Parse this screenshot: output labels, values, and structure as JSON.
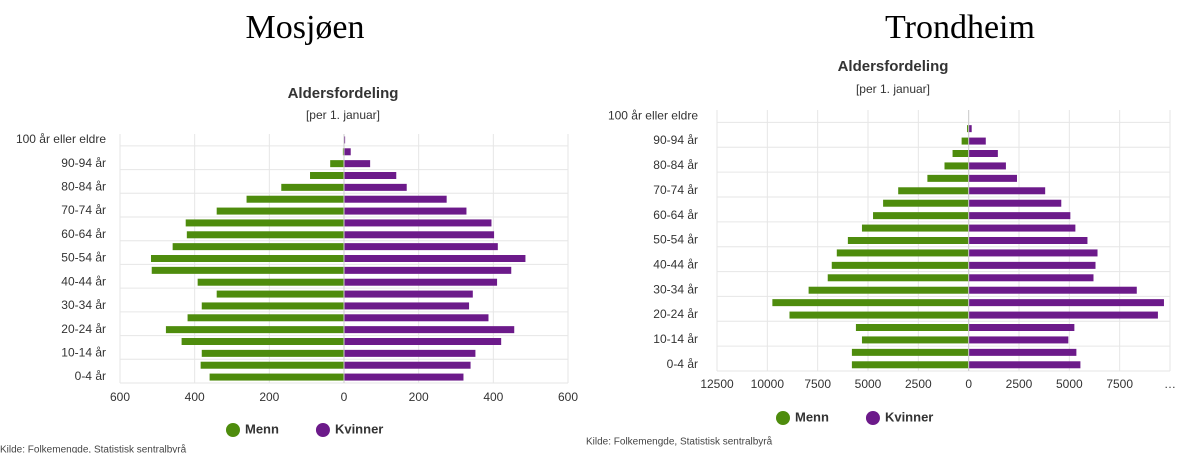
{
  "chart_data": [
    {
      "type": "pyramid",
      "header": "Mosjøen",
      "title": "Aldersfordeling",
      "subtitle": "[per 1. januar]",
      "categories": [
        "0-4 år",
        null,
        "10-14 år",
        null,
        "20-24 år",
        null,
        "30-34 år",
        null,
        "40-44 år",
        null,
        "50-54 år",
        null,
        "60-64 år",
        null,
        "70-74 år",
        null,
        "80-84 år",
        null,
        "90-94 år",
        null,
        "100 år eller eldre"
      ],
      "series": [
        {
          "name": "Menn",
          "color": "#4e8c0d",
          "values": [
            -360,
            -384,
            -381,
            -435,
            -477,
            -419,
            -381,
            -341,
            -392,
            -515,
            -517,
            -459,
            -421,
            -424,
            -341,
            -261,
            -168,
            -91,
            -37,
            -3,
            0
          ]
        },
        {
          "name": "Kvinner",
          "color": "#6c1a8a",
          "values": [
            320,
            339,
            352,
            421,
            456,
            387,
            335,
            345,
            410,
            448,
            486,
            412,
            402,
            395,
            328,
            275,
            168,
            140,
            70,
            18,
            3
          ]
        }
      ],
      "xlim": [
        -600,
        600
      ],
      "xticks": [
        {
          "value": -600,
          "label": "600"
        },
        {
          "value": -400,
          "label": "400"
        },
        {
          "value": -200,
          "label": "200"
        },
        0,
        200,
        400,
        600
      ],
      "grid": true,
      "source": "Kilde: Folkemengde, Statistisk sentralbyrå"
    },
    {
      "type": "pyramid",
      "header": "Trondheim",
      "title": "Aldersfordeling",
      "subtitle": "[per 1. januar]",
      "categories": [
        "0-4 år",
        null,
        "10-14 år",
        null,
        "20-24 år",
        null,
        "30-34 år",
        null,
        "40-44 år",
        null,
        "50-54 år",
        null,
        "60-64 år",
        null,
        "70-74 år",
        null,
        "80-84 år",
        null,
        "90-94 år",
        null,
        "100 år eller eldre"
      ],
      "series": [
        {
          "name": "Menn",
          "color": "#4e8c0d",
          "values": [
            -5800,
            -5800,
            -5300,
            -5600,
            -8900,
            -9750,
            -7950,
            -7000,
            -6800,
            -6550,
            -6000,
            -5300,
            -4750,
            -4250,
            -3500,
            -2050,
            -1200,
            -800,
            -350,
            -80,
            0
          ]
        },
        {
          "name": "Kvinner",
          "color": "#6c1a8a",
          "values": [
            5550,
            5350,
            4950,
            5250,
            9400,
            9700,
            8350,
            6200,
            6300,
            6400,
            5900,
            5300,
            5050,
            4600,
            3800,
            2400,
            1850,
            1450,
            850,
            150,
            0
          ]
        }
      ],
      "xlim": [
        -12500,
        10000
      ],
      "xticks": [
        {
          "value": -12500,
          "label": "12500"
        },
        {
          "value": -10000,
          "label": "10000"
        },
        {
          "value": -7500,
          "label": "7500"
        },
        {
          "value": -5000,
          "label": "5000"
        },
        {
          "value": -2500,
          "label": "2500"
        },
        0,
        2500,
        5000,
        7500,
        {
          "value": 10000,
          "label": "…"
        }
      ],
      "grid": true,
      "source": "Kilde: Folkemengde, Statistisk sentralbyrå"
    }
  ]
}
